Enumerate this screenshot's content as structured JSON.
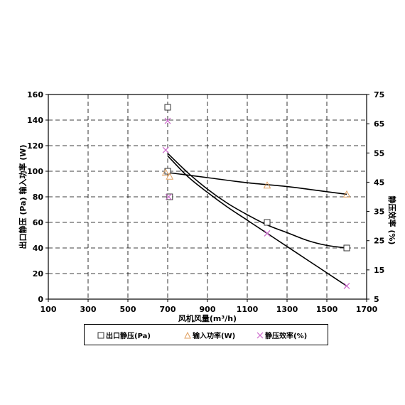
{
  "chart_data": {
    "type": "scatter",
    "xlabel": "风机风量(m³/h)",
    "ylabel_left": "出口静压 (Pa) 输入功率 (W)",
    "ylabel_right": "静压效率 (%)",
    "x_ticks": [
      "100",
      "300",
      "500",
      "700",
      "900",
      "1100",
      "1300",
      "1500",
      "1700"
    ],
    "y_left_ticks": [
      "0",
      "20",
      "40",
      "60",
      "80",
      "100",
      "120",
      "140",
      "160"
    ],
    "y_right_ticks": [
      "5",
      "15",
      "25",
      "35",
      "45",
      "55",
      "65",
      "75"
    ],
    "xlim": [
      100,
      1700
    ],
    "ylim_left": [
      0,
      160
    ],
    "ylim_right": [
      5,
      75
    ],
    "grid": true,
    "legend_position": "bottom",
    "series": [
      {
        "name": "出口静压(Pa)",
        "axis": "left",
        "marker": "square",
        "color": "#333333",
        "x": [
          700,
          700,
          710,
          1200,
          1600
        ],
        "y": [
          150,
          100,
          80,
          60,
          40
        ],
        "trend": [
          [
            700,
            114
          ],
          [
            800,
            99
          ],
          [
            900,
            86
          ],
          [
            1000,
            75
          ],
          [
            1100,
            66
          ],
          [
            1200,
            58
          ],
          [
            1300,
            52
          ],
          [
            1400,
            46
          ],
          [
            1500,
            42
          ],
          [
            1600,
            40
          ]
        ]
      },
      {
        "name": "输入功率(W)",
        "axis": "left",
        "marker": "triangle",
        "color": "#e0a060",
        "x": [
          690,
          710,
          1200,
          1600
        ],
        "y": [
          99,
          96,
          89,
          82
        ],
        "trend": [
          [
            700,
            99
          ],
          [
            900,
            95
          ],
          [
            1100,
            91
          ],
          [
            1300,
            88
          ],
          [
            1500,
            84
          ],
          [
            1600,
            82
          ]
        ]
      },
      {
        "name": "静压效率(%)",
        "axis": "right",
        "marker": "x",
        "color": "#cc66cc",
        "x": [
          700,
          690,
          705,
          1200,
          1600
        ],
        "y": [
          66,
          56,
          40,
          27.5,
          9.5
        ],
        "trend": [
          [
            700,
            54
          ],
          [
            800,
            47
          ],
          [
            900,
            41.5
          ],
          [
            1000,
            36.5
          ],
          [
            1100,
            32
          ],
          [
            1200,
            27.5
          ],
          [
            1300,
            23
          ],
          [
            1400,
            18.5
          ],
          [
            1500,
            14
          ],
          [
            1600,
            9.5
          ]
        ]
      }
    ]
  }
}
